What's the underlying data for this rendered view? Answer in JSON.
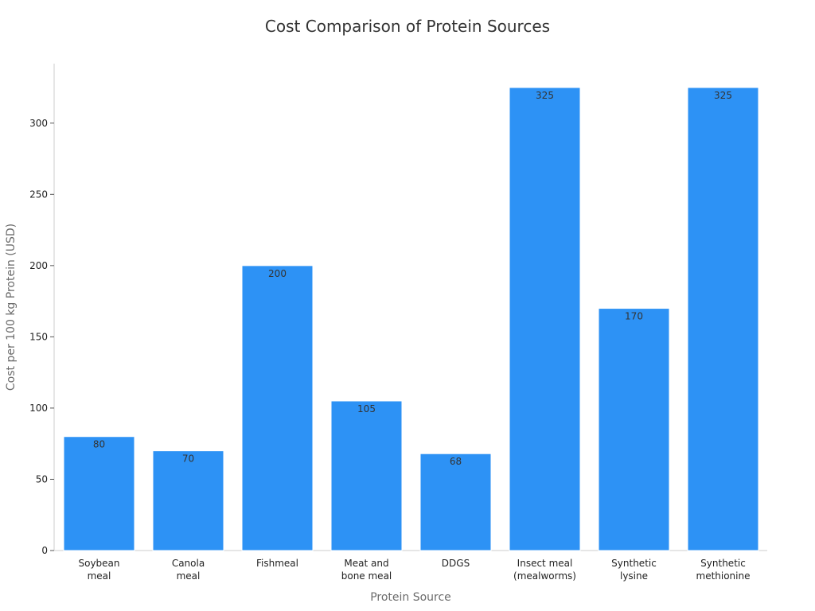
{
  "chart_data": {
    "type": "bar",
    "title": "Cost Comparison of Protein Sources",
    "xlabel": "Protein Source",
    "ylabel": "Cost per 100 kg Protein (USD)",
    "categories": [
      [
        "Soybean",
        "meal"
      ],
      [
        "Canola",
        "meal"
      ],
      [
        "Fishmeal"
      ],
      [
        "Meat and",
        "bone meal"
      ],
      [
        "DDGS"
      ],
      [
        "Insect meal",
        "(mealworms)"
      ],
      [
        "Synthetic",
        "lysine"
      ],
      [
        "Synthetic",
        "methionine"
      ]
    ],
    "values": [
      80,
      70,
      200,
      105,
      68,
      325,
      170,
      325
    ],
    "ylim": [
      0,
      340
    ],
    "yticks": [
      0,
      50,
      100,
      150,
      200,
      250,
      300
    ],
    "grid": false,
    "bar_color": "#2d92f5"
  }
}
